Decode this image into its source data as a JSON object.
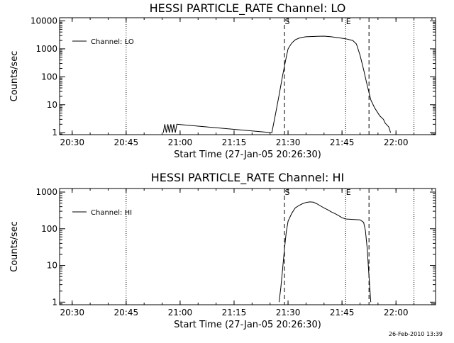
{
  "chart_data": [
    {
      "type": "line",
      "title": "HESSI PARTICLE_RATE Channel: LO",
      "xlabel": "Start Time (27-Jan-05 20:26:30)",
      "ylabel": "Counts/sec",
      "yscale": "log",
      "ylim": [
        0.85,
        13000
      ],
      "xlim": [
        "20:26:30",
        "22:11:00"
      ],
      "xticks": [
        "20:30",
        "20:45",
        "21:00",
        "21:15",
        "21:30",
        "21:45",
        "22:00"
      ],
      "yticks": [
        "1",
        "10",
        "100",
        "1000",
        "10000"
      ],
      "legend": "top-left",
      "grid": false,
      "series": [
        {
          "name": "Channel: LO",
          "x": [
            "20:55:20",
            "20:55:45",
            "20:56:10",
            "20:56:35",
            "20:57:00",
            "20:57:25",
            "20:57:50",
            "20:58:15",
            "20:58:40",
            "20:59:05",
            "21:25:30",
            "21:26:30",
            "21:27:30",
            "21:28:30",
            "21:29:30",
            "21:30:00",
            "21:31:00",
            "21:32:00",
            "21:33:00",
            "21:34:00",
            "21:35:00",
            "21:38:00",
            "21:40:00",
            "21:42:00",
            "21:44:00",
            "21:46:00",
            "21:48:00",
            "21:49:00",
            "21:50:00",
            "21:51:00",
            "21:52:00",
            "21:53:00",
            "21:54:00",
            "21:55:00",
            "21:55:30",
            "21:56:30",
            "21:57:00",
            "21:58:00",
            "21:58:30"
          ],
          "y": [
            1.0,
            2.0,
            1.0,
            2.0,
            1.0,
            2.0,
            1.0,
            2.0,
            1.0,
            2.0,
            1.0,
            4.5,
            22,
            110,
            500,
            1000,
            1600,
            2100,
            2400,
            2600,
            2700,
            2800,
            2850,
            2700,
            2500,
            2300,
            2000,
            1500,
            600,
            180,
            50,
            15,
            8,
            5,
            4,
            3,
            2.2,
            1.6,
            1.0
          ]
        }
      ],
      "markers": {
        "dotted": [
          "20:45:00",
          "22:05:00"
        ],
        "dashed": [
          {
            "time": "21:29:00",
            "label": "S"
          },
          {
            "time": "21:52:30",
            "label": ""
          }
        ],
        "dotted_labeled": [
          {
            "time": "21:46:00",
            "label": "E"
          }
        ]
      }
    },
    {
      "type": "line",
      "title": "HESSI PARTICLE_RATE Channel: HI",
      "xlabel": "Start Time (27-Jan-05 20:26:30)",
      "ylabel": "Counts/sec",
      "yscale": "log",
      "ylim": [
        0.85,
        1250
      ],
      "xlim": [
        "20:26:30",
        "22:11:00"
      ],
      "xticks": [
        "20:30",
        "20:45",
        "21:00",
        "21:15",
        "21:30",
        "21:45",
        "22:00"
      ],
      "yticks": [
        "1",
        "10",
        "100",
        "1000"
      ],
      "legend": "top-left",
      "grid": false,
      "series": [
        {
          "name": "Channel: HI",
          "x": [
            "21:27:30",
            "21:28:00",
            "21:28:30",
            "21:29:00",
            "21:29:30",
            "21:30:00",
            "21:31:00",
            "21:32:00",
            "21:33:00",
            "21:34:00",
            "21:35:00",
            "21:36:00",
            "21:37:00",
            "21:38:00",
            "21:39:00",
            "21:40:00",
            "21:41:00",
            "21:42:00",
            "21:43:00",
            "21:44:00",
            "21:45:00",
            "21:46:00",
            "21:48:00",
            "21:50:00",
            "21:51:00",
            "21:51:30",
            "21:52:00",
            "21:52:30",
            "21:53:00"
          ],
          "y": [
            1.0,
            2.5,
            8,
            28,
            80,
            160,
            260,
            370,
            430,
            480,
            520,
            540,
            530,
            480,
            420,
            370,
            330,
            290,
            260,
            230,
            200,
            185,
            180,
            175,
            150,
            90,
            30,
            5,
            1.0
          ]
        }
      ],
      "markers": {
        "dotted": [
          "20:45:00",
          "22:05:00"
        ],
        "dashed": [
          {
            "time": "21:29:00",
            "label": "S"
          },
          {
            "time": "21:52:30",
            "label": ""
          }
        ],
        "dotted_labeled": [
          {
            "time": "21:46:00",
            "label": "E"
          }
        ]
      }
    }
  ],
  "footer_date": "26-Feb-2010 13:39"
}
